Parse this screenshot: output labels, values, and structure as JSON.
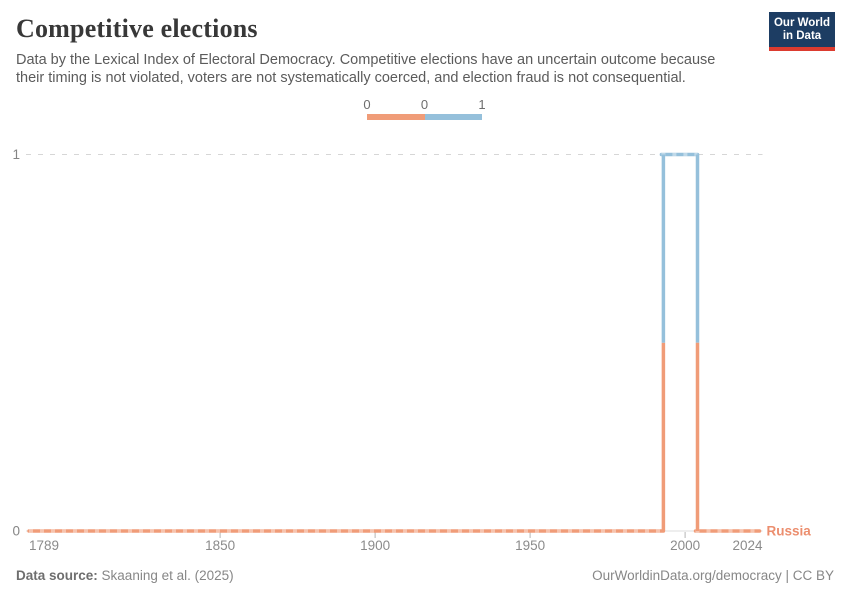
{
  "header": {
    "title": "Competitive elections",
    "subtitle": "Data by the Lexical Index of Electoral Democracy. Competitive elections have an uncertain outcome because their timing is not violated, voters are not systematically coerced, and election fraud is not consequential.",
    "logo": {
      "line1": "Our World",
      "line2": "in Data",
      "bg_color": "#1d3d63",
      "accent_color": "#dc3b2f"
    }
  },
  "legend": {
    "edge_labels": [
      "0",
      "0",
      "1"
    ],
    "bin_colors": [
      "#f09c78",
      "#95c0db"
    ]
  },
  "chart_data": {
    "type": "line",
    "step": true,
    "title": "Competitive elections",
    "entity": "Russia",
    "entity_label_color": "#ec8e6e",
    "x_range": [
      1789,
      2024
    ],
    "y_range": [
      0,
      1
    ],
    "x_ticks": [
      1789,
      1850,
      1900,
      1950,
      2000,
      2024
    ],
    "y_ticks": [
      0,
      1
    ],
    "segments": [
      {
        "from": 1789,
        "to": 1993,
        "value": 0
      },
      {
        "from": 1993,
        "to": 2004,
        "value": 1
      },
      {
        "from": 2004,
        "to": 2024,
        "value": 0
      }
    ],
    "value_colors": {
      "0": "#f09c78",
      "1": "#95c0db"
    },
    "grid": {
      "top_gridline": "dashed",
      "bottom_gridline": "solid"
    },
    "legend_position": "top-center"
  },
  "footer": {
    "source_label": "Data source:",
    "source_value": "Skaaning et al. (2025)",
    "credit": "OurWorldinData.org/democracy | CC BY"
  }
}
